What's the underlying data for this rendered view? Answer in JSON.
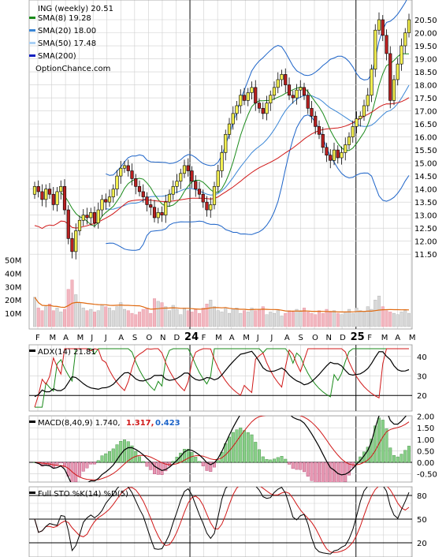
{
  "colors": {
    "sma8": "#1a8a1a",
    "sma20": "#3a86d6",
    "sma50": "#a9d0f5",
    "sma200": "#1020c0",
    "bollinger": "#1c63c8",
    "red_line": "#d01818",
    "orange_avg": "#e06a10",
    "up_candle": "#f3ef50",
    "down_candle": "#b82020",
    "vol_up": "#d9d9d9",
    "vol_down": "#f2b6bf",
    "grid": "#cfcfcf",
    "hist_pos": "#88cf88",
    "hist_neg": "#e797b2"
  },
  "chart_data": [
    {
      "panel": "price",
      "type": "candlestick",
      "title": "ING (weekly) 20.51",
      "legend": [
        {
          "label": "SMA(8) 19.28",
          "color": "#1a8a1a"
        },
        {
          "label": "SMA(20) 18.00",
          "color": "#3a86d6"
        },
        {
          "label": "SMA(50) 17.48",
          "color": "#a9d0f5"
        },
        {
          "label": "SMA(200)",
          "color": "#1020c0"
        }
      ],
      "watermark": "OptionChance.com",
      "y_ticks": [
        "20.50",
        "20.00",
        "19.50",
        "19.00",
        "18.50",
        "18.00",
        "17.50",
        "17.00",
        "16.50",
        "16.00",
        "15.50",
        "15.00",
        "14.50",
        "14.00",
        "13.50",
        "13.00",
        "12.50",
        "12.00",
        "11.50"
      ],
      "ylim": [
        11.0,
        20.9
      ],
      "x_ticks": [
        "F",
        "M",
        "A",
        "M",
        "J",
        "J",
        "A",
        "S",
        "O",
        "N",
        "D",
        "24",
        "F",
        "M",
        "A",
        "M",
        "J",
        "J",
        "A",
        "S",
        "O",
        "N",
        "D",
        "25",
        "F",
        "M",
        "A",
        "M"
      ],
      "closes": [
        14.1,
        13.9,
        13.6,
        14.0,
        13.8,
        13.4,
        13.9,
        14.1,
        13.2,
        12.1,
        11.6,
        12.4,
        12.8,
        13.0,
        12.9,
        13.1,
        12.7,
        13.2,
        13.6,
        13.5,
        13.7,
        14.0,
        14.5,
        14.8,
        14.9,
        14.7,
        14.4,
        14.1,
        13.9,
        13.7,
        13.4,
        13.3,
        12.9,
        13.1,
        13.0,
        13.5,
        13.8,
        14.1,
        14.3,
        14.6,
        14.9,
        14.7,
        14.3,
        14.0,
        13.8,
        13.5,
        13.2,
        13.4,
        14.1,
        14.7,
        15.4,
        16.1,
        16.5,
        16.9,
        17.2,
        17.6,
        17.4,
        17.7,
        17.9,
        17.3,
        17.1,
        16.9,
        17.3,
        17.6,
        17.9,
        18.2,
        18.4,
        18.0,
        17.6,
        17.5,
        17.8,
        17.9,
        17.6,
        17.1,
        16.8,
        16.4,
        16.1,
        15.6,
        15.3,
        15.1,
        15.5,
        15.2,
        15.4,
        15.7,
        16.0,
        16.4,
        16.7,
        16.8,
        17.2,
        17.6,
        18.6,
        20.1,
        20.5,
        19.9,
        19.2,
        17.4,
        18.2,
        18.8,
        19.5,
        20.0,
        20.5
      ]
    },
    {
      "panel": "volume",
      "type": "bar",
      "y_ticks": [
        "50M",
        "40M",
        "30M",
        "20M",
        "10M"
      ],
      "ylim": [
        0,
        55
      ],
      "values": [
        22,
        14,
        12,
        15,
        17,
        12,
        14,
        11,
        13,
        28,
        35,
        24,
        18,
        14,
        12,
        13,
        11,
        12,
        16,
        15,
        14,
        12,
        15,
        18,
        13,
        12,
        10,
        9,
        11,
        13,
        14,
        10,
        21,
        19,
        18,
        15,
        12,
        16,
        13,
        9,
        14,
        12,
        11,
        13,
        10,
        14,
        17,
        20,
        15,
        12,
        11,
        14,
        10,
        13,
        14,
        10,
        12,
        11,
        14,
        12,
        13,
        15,
        9,
        11,
        10,
        12,
        8,
        10,
        12,
        11,
        13,
        12,
        14,
        11,
        10,
        9,
        12,
        10,
        13,
        11,
        12,
        10,
        9,
        11,
        13,
        10,
        14,
        12,
        11,
        15,
        13,
        20,
        23,
        15,
        12,
        11,
        10,
        9,
        11,
        12,
        10
      ],
      "moving_average": 14
    },
    {
      "panel": "adx",
      "type": "line",
      "label": "ADX(14) 21.81",
      "y_ticks": [
        "40",
        "30",
        "20"
      ],
      "ylim": [
        12,
        46
      ]
    },
    {
      "panel": "macd",
      "type": "line",
      "label_prefix": "MACD(8,40,9) 1.740,",
      "label_signal": "1.317,",
      "label_hist": "0.423",
      "y_ticks": [
        "2.00",
        "1.50",
        "1.00",
        "0.50",
        "0.00",
        "-0.50"
      ],
      "ylim": [
        -0.75,
        2.15
      ]
    },
    {
      "panel": "stochastic",
      "type": "line",
      "label": "Full STO %K(14) %D(5)",
      "y_ticks": [
        "80",
        "50",
        "20"
      ],
      "ylim": [
        8,
        100
      ]
    }
  ]
}
